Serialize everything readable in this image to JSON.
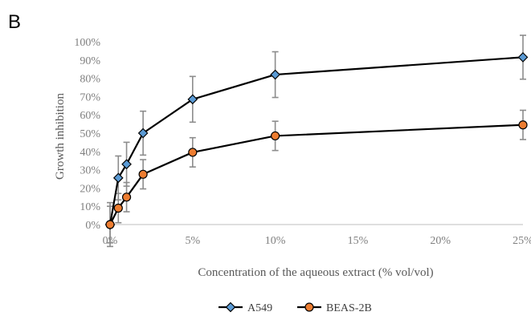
{
  "panel_label": "B",
  "chart_data": {
    "type": "line",
    "xlabel": "Concentration of the aqueous extract (% vol/vol)",
    "ylabel": "Growth inhibition",
    "x_ticks": [
      "0%",
      "5%",
      "10%",
      "15%",
      "20%",
      "25%"
    ],
    "x_tick_values": [
      0,
      5,
      10,
      15,
      20,
      25
    ],
    "y_ticks": [
      "0%",
      "10%",
      "20%",
      "30%",
      "40%",
      "50%",
      "60%",
      "70%",
      "80%",
      "90%",
      "100%"
    ],
    "y_tick_values": [
      0,
      10,
      20,
      30,
      40,
      50,
      60,
      70,
      80,
      90,
      100
    ],
    "xlim": [
      0,
      25
    ],
    "ylim": [
      0,
      100
    ],
    "grid": false,
    "legend_position": "bottom",
    "x": [
      0,
      0.5,
      1,
      2,
      5,
      10,
      25
    ],
    "series": [
      {
        "name": "A549",
        "marker": "diamond",
        "color": "#5b9bd5",
        "values": [
          0,
          25.5,
          33,
          50,
          68.5,
          82,
          91.5
        ],
        "errors": [
          10,
          12,
          12,
          12,
          12.5,
          12.5,
          12
        ]
      },
      {
        "name": "BEAS-2B",
        "marker": "circle",
        "color": "#ed7d31",
        "values": [
          0,
          9,
          15,
          27.5,
          39.5,
          48.5,
          54.5
        ],
        "errors": [
          12,
          8,
          8,
          8,
          8,
          8,
          8
        ]
      }
    ]
  }
}
